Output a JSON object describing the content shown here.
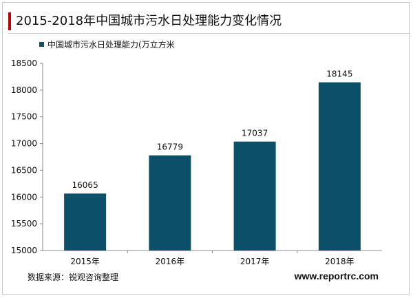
{
  "header": {
    "title": "2015-2018年中国城市污水日处理能力变化情况"
  },
  "footer": {
    "source": "数据来源：锐观咨询整理",
    "website": "www.reportrc.com"
  },
  "colors": {
    "bar": "#0b4f68",
    "accent": "#c00000",
    "axis": "#8c8c8c"
  },
  "chart_data": {
    "type": "bar",
    "categories": [
      "2015年",
      "2016年",
      "2017年",
      "2018年"
    ],
    "series": [
      {
        "name": "中国城市污水日处理能力(万立方米",
        "values": [
          16065,
          16779,
          17037,
          18145
        ]
      }
    ],
    "ylim": [
      15000,
      18500
    ],
    "yticks": [
      15000,
      15500,
      16000,
      16500,
      17000,
      17500,
      18000,
      18500
    ],
    "grid": false,
    "legend": "top-left"
  }
}
